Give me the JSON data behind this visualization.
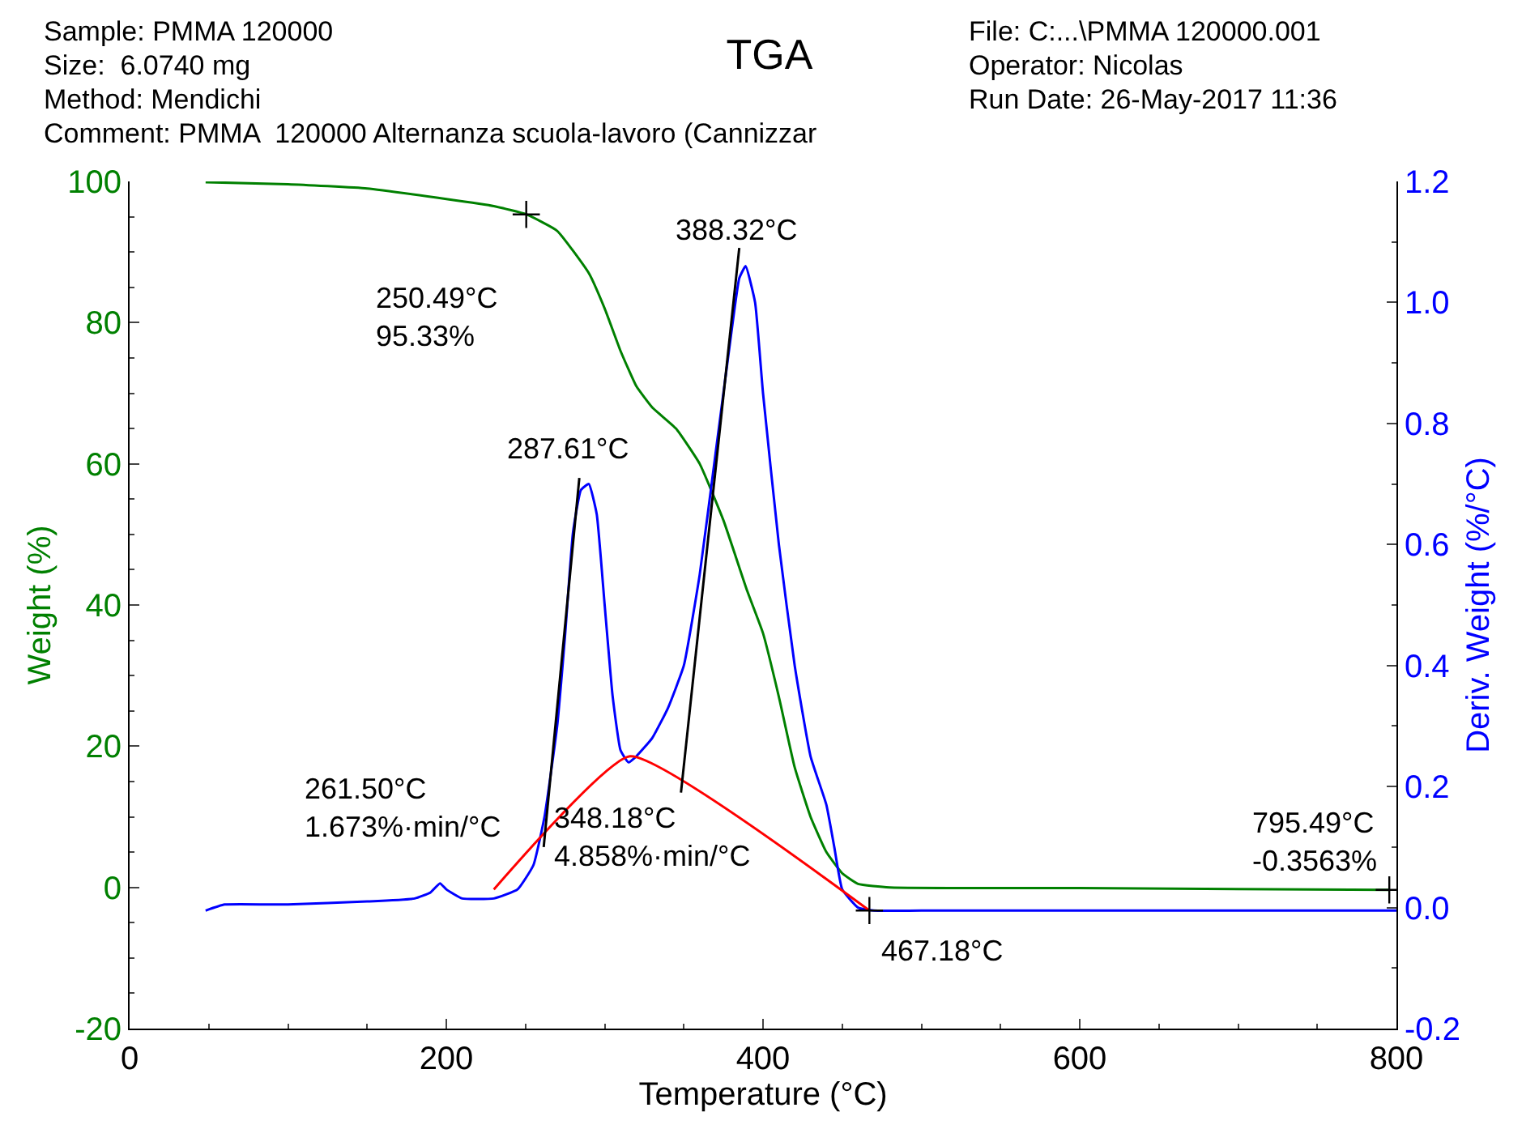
{
  "chart_data": {
    "type": "line",
    "title": "TGA",
    "xlabel": "Temperature (°C)",
    "ylabel": "Weight (%)",
    "y2label": "Deriv. Weight (%/°C)",
    "xlim": [
      0,
      800
    ],
    "xticks": [
      0,
      200,
      400,
      600,
      800
    ],
    "ylim": [
      -20,
      100
    ],
    "yticks": [
      -20,
      0,
      20,
      40,
      60,
      80,
      100
    ],
    "y2lim": [
      -0.2,
      1.2
    ],
    "y2ticks": [
      {
        "value": -0.2,
        "label": "-0.2"
      },
      {
        "value": 0,
        "label": "0.0"
      },
      {
        "value": 0.2,
        "label": "0.2"
      },
      {
        "value": 0.4,
        "label": "0.4"
      },
      {
        "value": 0.6,
        "label": "0.6"
      },
      {
        "value": 0.8,
        "label": "0.8"
      },
      {
        "value": 1,
        "label": "1.0"
      },
      {
        "value": 1.2,
        "label": "1.2"
      }
    ],
    "series": [
      {
        "color": "#008000",
        "x": [
          48,
          100,
          150,
          200,
          230,
          250.49,
          270,
          290,
          300,
          310,
          320,
          330,
          345,
          360,
          375,
          390,
          400,
          410,
          420,
          430,
          440,
          450,
          460,
          480,
          600,
          795.49
        ],
        "values": [
          99.9,
          99.6,
          99,
          97.5,
          96.5,
          95.33,
          93,
          87,
          82,
          76,
          71,
          68,
          65,
          60,
          52,
          42,
          36,
          27,
          17,
          10,
          5,
          2,
          0.5,
          0,
          -0.1,
          -0.36
        ]
      },
      {
        "color": "#0000ff",
        "axis": "y2",
        "x": [
          48,
          60,
          100,
          150,
          180,
          190,
          196,
          200,
          210,
          230,
          245,
          255,
          262,
          270,
          275,
          280,
          285,
          290,
          295,
          300,
          305,
          310,
          315,
          320,
          330,
          340,
          350,
          360,
          370,
          380,
          385,
          389,
          395,
          400,
          410,
          420,
          430,
          440,
          445,
          450,
          460,
          470,
          500,
          800
        ],
        "values": [
          -0.005,
          0.005,
          0.005,
          0.01,
          0.015,
          0.025,
          0.04,
          0.03,
          0.015,
          0.015,
          0.03,
          0.07,
          0.15,
          0.3,
          0.45,
          0.62,
          0.69,
          0.7,
          0.65,
          0.5,
          0.35,
          0.26,
          0.24,
          0.25,
          0.28,
          0.33,
          0.4,
          0.55,
          0.75,
          0.95,
          1.04,
          1.06,
          1.0,
          0.85,
          0.6,
          0.4,
          0.25,
          0.17,
          0.1,
          0.03,
          0.0,
          -0.005,
          -0.005,
          -0.005
        ]
      },
      {
        "color": "#ff0000",
        "axis": "y2",
        "x": [
          230,
          316,
          467.18
        ],
        "values": [
          0.03,
          0.25,
          -0.005
        ]
      },
      {
        "color": "#000000",
        "axis": "y2",
        "x": [
          261.5,
          284
        ],
        "values": [
          0.1,
          0.71
        ]
      },
      {
        "color": "#000000",
        "axis": "y2",
        "x": [
          348.18,
          385
        ],
        "values": [
          0.19,
          1.09
        ]
      },
      {
        "type": "scatter",
        "marker": "cross",
        "color": "#000000",
        "x": [
          250.49,
          795.49
        ],
        "values": [
          95.33,
          -0.3563
        ]
      },
      {
        "type": "scatter",
        "marker": "cross",
        "color": "#000000",
        "axis": "y2",
        "x": [
          467.18
        ],
        "values": [
          -0.005
        ]
      }
    ],
    "annotations": [
      "Sample: PMMA 120000",
      "Size:  6.0740 mg",
      "Method: Mendichi",
      "Comment: PMMA  120000 Alternanza scuola-lavoro (Cannizzar",
      "File: C:...\\PMMA 120000.001",
      "Operator: Nicolas",
      "Run Date: 26-May-2017 11:36",
      {
        "text": "250.49°C\n95.33%",
        "x": 250.49,
        "y": 95.33
      },
      {
        "text": "388.32°C",
        "x": 388.32,
        "y": 88
      },
      {
        "text": "287.61°C",
        "x": 287.61,
        "y": 58.5
      },
      {
        "text": "261.50°C\n1.673%·min/°C",
        "x": 261.5,
        "y": 5.7
      },
      {
        "text": "348.18°C\n4.858%·min/°C",
        "x": 348.18,
        "y": 13.4
      },
      {
        "text": "467.18°C",
        "x": 467.18,
        "y": -2.6
      },
      {
        "text": "795.49°C\n-0.3563%",
        "x": 795.49,
        "y": -0.36
      }
    ]
  }
}
